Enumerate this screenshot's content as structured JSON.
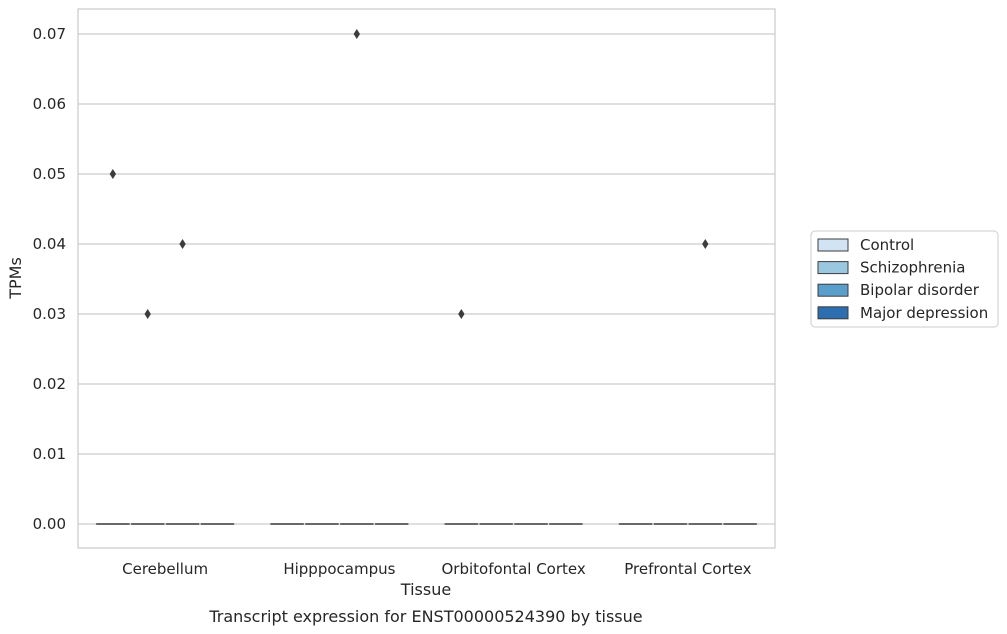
{
  "chart_data": {
    "type": "box",
    "title": "",
    "caption": "Transcript expression for ENST00000524390 by tissue",
    "xlabel": "Tissue",
    "ylabel": "TPMs",
    "ylim": [
      -0.0034,
      0.0736
    ],
    "yticks": [
      0.0,
      0.01,
      0.02,
      0.03,
      0.04,
      0.05,
      0.06,
      0.07
    ],
    "ytick_labels": [
      "0.00",
      "0.01",
      "0.02",
      "0.03",
      "0.04",
      "0.05",
      "0.06",
      "0.07"
    ],
    "grid": "horizontal",
    "legend_position": "right",
    "categories": [
      "Cerebellum",
      "Hipppocampus",
      "Orbitofontal Cortex",
      "Prefrontal Cortex"
    ],
    "series": [
      {
        "name": "Control",
        "color": "#d2e3f3",
        "boxes": [
          {
            "median": 0,
            "q1": 0,
            "q3": 0,
            "whisker_low": 0,
            "whisker_high": 0,
            "outliers": [
              0.05
            ]
          },
          {
            "median": 0,
            "q1": 0,
            "q3": 0,
            "whisker_low": 0,
            "whisker_high": 0,
            "outliers": []
          },
          {
            "median": 0,
            "q1": 0,
            "q3": 0,
            "whisker_low": 0,
            "whisker_high": 0,
            "outliers": [
              0.03
            ]
          },
          {
            "median": 0,
            "q1": 0,
            "q3": 0,
            "whisker_low": 0,
            "whisker_high": 0,
            "outliers": []
          }
        ]
      },
      {
        "name": "Schizophrenia",
        "color": "#9ac8e0",
        "boxes": [
          {
            "median": 0,
            "q1": 0,
            "q3": 0,
            "whisker_low": 0,
            "whisker_high": 0,
            "outliers": [
              0.03
            ]
          },
          {
            "median": 0,
            "q1": 0,
            "q3": 0,
            "whisker_low": 0,
            "whisker_high": 0,
            "outliers": []
          },
          {
            "median": 0,
            "q1": 0,
            "q3": 0,
            "whisker_low": 0,
            "whisker_high": 0,
            "outliers": []
          },
          {
            "median": 0,
            "q1": 0,
            "q3": 0,
            "whisker_low": 0,
            "whisker_high": 0,
            "outliers": []
          }
        ]
      },
      {
        "name": "Bipolar disorder",
        "color": "#5a9ecc",
        "boxes": [
          {
            "median": 0,
            "q1": 0,
            "q3": 0,
            "whisker_low": 0,
            "whisker_high": 0,
            "outliers": [
              0.04
            ]
          },
          {
            "median": 0,
            "q1": 0,
            "q3": 0,
            "whisker_low": 0,
            "whisker_high": 0,
            "outliers": [
              0.07
            ]
          },
          {
            "median": 0,
            "q1": 0,
            "q3": 0,
            "whisker_low": 0,
            "whisker_high": 0,
            "outliers": []
          },
          {
            "median": 0,
            "q1": 0,
            "q3": 0,
            "whisker_low": 0,
            "whisker_high": 0,
            "outliers": [
              0.04
            ]
          }
        ]
      },
      {
        "name": "Major depression",
        "color": "#2c6eaf",
        "boxes": [
          {
            "median": 0,
            "q1": 0,
            "q3": 0,
            "whisker_low": 0,
            "whisker_high": 0,
            "outliers": []
          },
          {
            "median": 0,
            "q1": 0,
            "q3": 0,
            "whisker_low": 0,
            "whisker_high": 0,
            "outliers": []
          },
          {
            "median": 0,
            "q1": 0,
            "q3": 0,
            "whisker_low": 0,
            "whisker_high": 0,
            "outliers": []
          },
          {
            "median": 0,
            "q1": 0,
            "q3": 0,
            "whisker_low": 0,
            "whisker_high": 0,
            "outliers": []
          }
        ]
      }
    ]
  },
  "colors": {
    "grid": "#cccccc",
    "frame": "#cccccc",
    "mark": "#3c3c3c",
    "text": "#262626"
  }
}
